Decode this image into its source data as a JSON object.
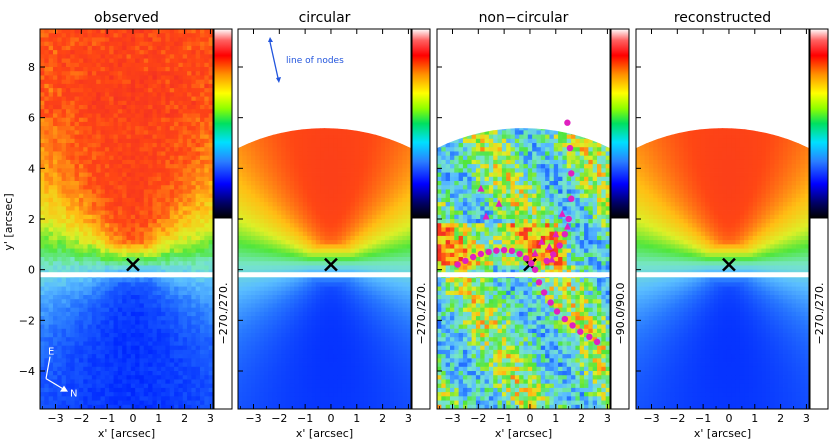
{
  "chart_data": {
    "type": "heatmap",
    "xlabel": "x' [arcsec]",
    "ylabel": "y' [arcsec]",
    "xlim": [
      -3.6,
      3.1
    ],
    "ylim": [
      -5.5,
      9.5
    ],
    "xticks": [
      -3,
      -2,
      -1,
      0,
      1,
      2,
      3
    ],
    "yticks": [
      -4,
      -2,
      0,
      2,
      4,
      6,
      8
    ],
    "center_marker": [
      0,
      0.2
    ],
    "gap_y": -0.2,
    "panels": [
      {
        "title": "observed",
        "kind": "observed",
        "colorbar_range": "−270./270.",
        "annotations": {
          "compass_e": "E",
          "compass_n": "N"
        }
      },
      {
        "title": "circular",
        "kind": "model",
        "colorbar_range": "−270./270.",
        "annotations": {
          "line_of_nodes": "line of nodes"
        }
      },
      {
        "title": "non−circular",
        "kind": "residual",
        "colorbar_range": "−90.0/90.0",
        "points": [
          {
            "x": -2.8,
            "y": 0.2
          },
          {
            "x": -2.5,
            "y": 0.35
          },
          {
            "x": -2.2,
            "y": 0.5
          },
          {
            "x": -1.9,
            "y": 0.62
          },
          {
            "x": -1.6,
            "y": 0.7
          },
          {
            "x": -1.3,
            "y": 0.75
          },
          {
            "x": -1.0,
            "y": 0.77
          },
          {
            "x": -0.7,
            "y": 0.74
          },
          {
            "x": -0.4,
            "y": 0.62
          },
          {
            "x": -0.15,
            "y": 0.45
          },
          {
            "x": 0.05,
            "y": 0.25
          },
          {
            "x": 0.2,
            "y": 0.0
          },
          {
            "x": 0.35,
            "y": -0.5
          },
          {
            "x": 0.55,
            "y": -0.9
          },
          {
            "x": 0.8,
            "y": -1.3
          },
          {
            "x": 1.05,
            "y": -1.65
          },
          {
            "x": 1.35,
            "y": -1.95
          },
          {
            "x": 1.65,
            "y": -2.2
          },
          {
            "x": 1.95,
            "y": -2.45
          },
          {
            "x": 2.3,
            "y": -2.65
          },
          {
            "x": 2.6,
            "y": -2.85
          },
          {
            "x": 1.45,
            "y": 5.8
          },
          {
            "x": 1.55,
            "y": 4.8
          },
          {
            "x": 1.6,
            "y": 3.8
          },
          {
            "x": 1.6,
            "y": 2.8
          },
          {
            "x": 1.5,
            "y": 2.0
          },
          {
            "x": 1.35,
            "y": 1.4
          },
          {
            "x": 1.15,
            "y": 0.95
          },
          {
            "x": 0.9,
            "y": 0.6
          },
          {
            "x": 0.65,
            "y": 0.35
          }
        ],
        "triangles": [
          {
            "x": -1.7,
            "y": 2.1
          },
          {
            "x": -1.2,
            "y": 2.6
          },
          {
            "x": -1.9,
            "y": 3.2
          },
          {
            "x": 0.45,
            "y": 1.1
          },
          {
            "x": 0.75,
            "y": 0.9
          },
          {
            "x": 1.0,
            "y": 1.4
          },
          {
            "x": 0.2,
            "y": 0.65
          },
          {
            "x": 1.25,
            "y": 2.2
          },
          {
            "x": 1.45,
            "y": 1.7
          },
          {
            "x": 0.85,
            "y": 0.4
          }
        ]
      },
      {
        "title": "reconstructed",
        "kind": "model",
        "colorbar_range": "−270./270."
      }
    ]
  }
}
